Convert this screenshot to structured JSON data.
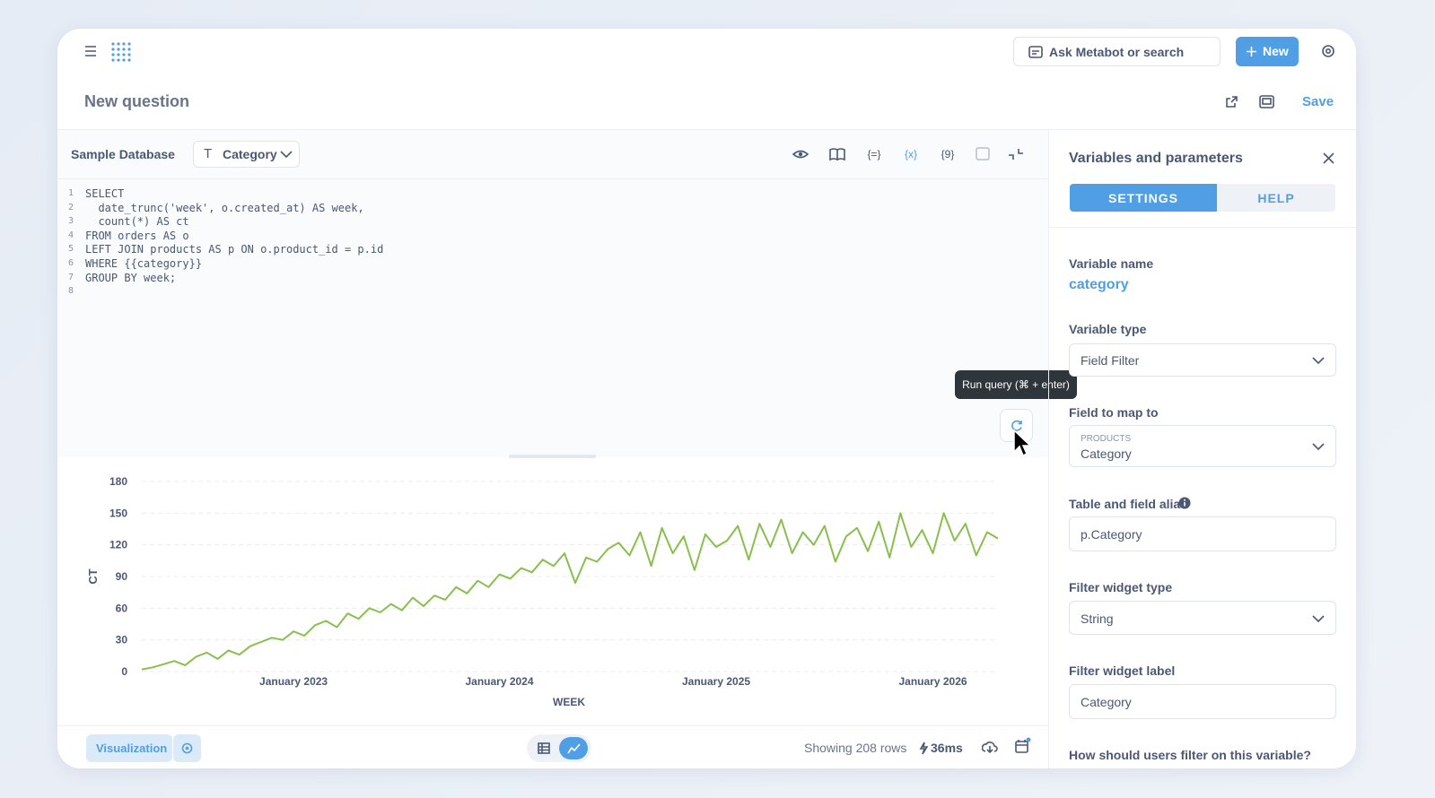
{
  "header": {
    "search": "Ask Metabot or search",
    "new_button": "New",
    "title": "New question",
    "save": "Save"
  },
  "editor": {
    "database": "Sample Database",
    "variable": "Category",
    "line_numbers": [
      1,
      2,
      3,
      4,
      5,
      6,
      7,
      8
    ],
    "code": [
      "SELECT",
      "  date_trunc('week', o.created_at) AS week,",
      "  count(*) AS ct",
      "FROM orders AS o",
      "LEFT JOIN products AS p ON o.product_id = p.id",
      "WHERE {{category}}",
      "GROUP BY week;"
    ],
    "tooltip": "Run query (⌘ + enter)"
  },
  "chart_data": {
    "type": "line",
    "x_label": "WEEK",
    "y_label": "CT",
    "color": "#88bf4d",
    "categories": [
      null,
      null,
      null,
      null,
      null,
      null,
      null,
      null,
      null,
      null,
      null,
      null,
      null,
      null,
      "January 2023",
      null,
      null,
      null,
      null,
      null,
      null,
      null,
      null,
      null,
      null,
      null,
      null,
      null,
      null,
      null,
      null,
      null,
      null,
      "January 2024",
      null,
      null,
      null,
      null,
      null,
      null,
      null,
      null,
      null,
      null,
      null,
      null,
      null,
      null,
      null,
      null,
      null,
      null,
      null,
      "January 2025",
      null,
      null,
      null,
      null,
      null,
      null,
      null,
      null,
      null,
      null,
      null,
      null,
      null,
      null,
      null,
      null,
      null,
      null,
      null,
      "January 2026",
      null,
      null,
      null,
      null,
      null,
      null
    ],
    "values": [
      2,
      4,
      7,
      10,
      6,
      14,
      18,
      12,
      20,
      16,
      24,
      28,
      32,
      30,
      38,
      34,
      44,
      48,
      42,
      55,
      50,
      60,
      56,
      64,
      58,
      70,
      62,
      72,
      68,
      80,
      74,
      86,
      80,
      92,
      88,
      98,
      94,
      106,
      100,
      112,
      84,
      108,
      104,
      116,
      122,
      110,
      132,
      100,
      136,
      112,
      128,
      96,
      130,
      118,
      124,
      138,
      106,
      140,
      118,
      144,
      112,
      132,
      120,
      138,
      104,
      128,
      136,
      114,
      142,
      108,
      150,
      118,
      134,
      112,
      150,
      124,
      140,
      110,
      132,
      126
    ],
    "ylim": [
      0,
      180
    ],
    "yticks": [
      0,
      30,
      60,
      90,
      120,
      150,
      180
    ],
    "grid": true
  },
  "footer": {
    "visualization": "Visualization",
    "rows": "Showing 208 rows",
    "time": "36ms"
  },
  "panel": {
    "title": "Variables and parameters",
    "tabs": [
      "SETTINGS",
      "HELP"
    ],
    "variable_name_label": "Variable name",
    "variable_name": "category",
    "variable_type_label": "Variable type",
    "variable_type": "Field Filter",
    "field_label": "Field to map to",
    "field_table": "PRODUCTS",
    "field": "Category",
    "alias_label": "Table and field alias",
    "alias": "p.Category",
    "widget_type_label": "Filter widget type",
    "widget_type": "String",
    "widget_label_label": "Filter widget label",
    "widget_label": "Category",
    "filter_question": "How should users filter on this variable?"
  }
}
